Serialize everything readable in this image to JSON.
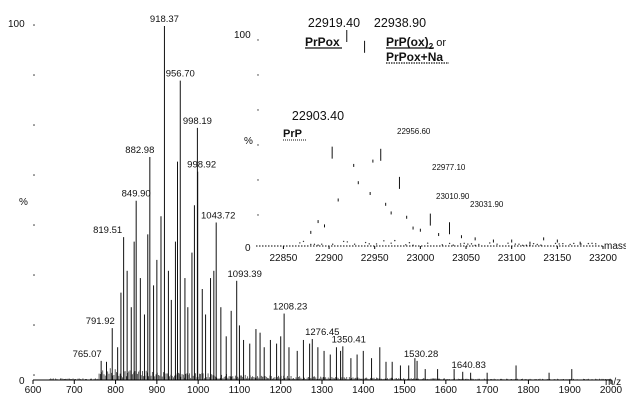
{
  "chart_data": [
    {
      "type": "bar",
      "panel": "main",
      "xlabel": "m/z",
      "x_ticks": [
        600,
        700,
        800,
        900,
        1000,
        1100,
        1200,
        1300,
        1400,
        1500,
        1600,
        1700,
        1800,
        1900,
        2000
      ],
      "xlim": [
        600,
        2000
      ],
      "ylim": [
        0,
        100
      ],
      "y_labels": [
        "100",
        "%",
        "0"
      ],
      "labeled_peaks": [
        {
          "x": 765.07,
          "y": 8,
          "label": "765.07"
        },
        {
          "x": 791.92,
          "y": 17,
          "label": "791.92"
        },
        {
          "x": 819.51,
          "y": 42,
          "label": "819.51"
        },
        {
          "x": 849.9,
          "y": 52,
          "label": "849.90"
        },
        {
          "x": 882.98,
          "y": 64,
          "label": "882.98"
        },
        {
          "x": 918.37,
          "y": 100,
          "label": "918.37"
        },
        {
          "x": 956.7,
          "y": 85,
          "label": "956.70"
        },
        {
          "x": 998.19,
          "y": 72,
          "label": "998.19"
        },
        {
          "x": 998.92,
          "y": 60,
          "label": "998.92"
        },
        {
          "x": 1043.72,
          "y": 46,
          "label": "1043.72"
        },
        {
          "x": 1093.39,
          "y": 30,
          "label": "1093.39"
        },
        {
          "x": 1208.23,
          "y": 21,
          "label": "1208.23"
        },
        {
          "x": 1276.45,
          "y": 14,
          "label": "1276.45"
        },
        {
          "x": 1350.41,
          "y": 12,
          "label": "1350.41"
        },
        {
          "x": 1530.28,
          "y": 8,
          "label": "1530.28"
        },
        {
          "x": 1640.83,
          "y": 5,
          "label": "1640.83"
        }
      ],
      "minor_peaks": [
        {
          "x": 778,
          "y": 5
        },
        {
          "x": 805,
          "y": 9
        },
        {
          "x": 813,
          "y": 24
        },
        {
          "x": 828,
          "y": 30
        },
        {
          "x": 838,
          "y": 20
        },
        {
          "x": 845,
          "y": 38
        },
        {
          "x": 860,
          "y": 28
        },
        {
          "x": 870,
          "y": 18
        },
        {
          "x": 878,
          "y": 40
        },
        {
          "x": 892,
          "y": 26
        },
        {
          "x": 900,
          "y": 33
        },
        {
          "x": 910,
          "y": 45
        },
        {
          "x": 928,
          "y": 30
        },
        {
          "x": 935,
          "y": 22
        },
        {
          "x": 945,
          "y": 38
        },
        {
          "x": 950,
          "y": 60
        },
        {
          "x": 968,
          "y": 28
        },
        {
          "x": 975,
          "y": 20
        },
        {
          "x": 985,
          "y": 35
        },
        {
          "x": 991,
          "y": 48
        },
        {
          "x": 1010,
          "y": 25
        },
        {
          "x": 1018,
          "y": 18
        },
        {
          "x": 1030,
          "y": 28
        },
        {
          "x": 1038,
          "y": 30
        },
        {
          "x": 1055,
          "y": 20
        },
        {
          "x": 1068,
          "y": 12
        },
        {
          "x": 1080,
          "y": 19
        },
        {
          "x": 1100,
          "y": 15
        },
        {
          "x": 1110,
          "y": 11
        },
        {
          "x": 1125,
          "y": 10
        },
        {
          "x": 1140,
          "y": 14
        },
        {
          "x": 1150,
          "y": 13
        },
        {
          "x": 1160,
          "y": 9
        },
        {
          "x": 1175,
          "y": 11
        },
        {
          "x": 1190,
          "y": 10
        },
        {
          "x": 1200,
          "y": 12
        },
        {
          "x": 1220,
          "y": 9
        },
        {
          "x": 1240,
          "y": 8
        },
        {
          "x": 1255,
          "y": 11
        },
        {
          "x": 1270,
          "y": 10
        },
        {
          "x": 1290,
          "y": 9
        },
        {
          "x": 1305,
          "y": 8
        },
        {
          "x": 1320,
          "y": 7
        },
        {
          "x": 1335,
          "y": 9
        },
        {
          "x": 1345,
          "y": 8
        },
        {
          "x": 1370,
          "y": 6
        },
        {
          "x": 1385,
          "y": 7
        },
        {
          "x": 1400,
          "y": 8
        },
        {
          "x": 1420,
          "y": 6
        },
        {
          "x": 1440,
          "y": 9
        },
        {
          "x": 1455,
          "y": 5
        },
        {
          "x": 1470,
          "y": 5
        },
        {
          "x": 1490,
          "y": 4
        },
        {
          "x": 1510,
          "y": 4
        },
        {
          "x": 1525,
          "y": 6
        },
        {
          "x": 1550,
          "y": 3
        },
        {
          "x": 1580,
          "y": 3
        },
        {
          "x": 1620,
          "y": 3
        },
        {
          "x": 1660,
          "y": 2
        },
        {
          "x": 1700,
          "y": 2
        },
        {
          "x": 1770,
          "y": 4
        },
        {
          "x": 1850,
          "y": 2
        },
        {
          "x": 1905,
          "y": 3
        }
      ]
    },
    {
      "type": "bar",
      "panel": "inset",
      "xlabel": "mass",
      "x_ticks": [
        22850,
        22900,
        22950,
        23000,
        23050,
        23100,
        23150,
        23200
      ],
      "xlim": [
        22820,
        23200
      ],
      "ylim": [
        0,
        100
      ],
      "y_labels": [
        "100",
        "%",
        "0"
      ],
      "labeled_peaks": [
        {
          "x": 22903.4,
          "y": 46,
          "label": "22903.40"
        },
        {
          "x": 22919.4,
          "y": 100,
          "label": "22919.40"
        },
        {
          "x": 22938.9,
          "y": 95,
          "label": "22938.90"
        },
        {
          "x": 22956.6,
          "y": 45,
          "label": "22956.60"
        },
        {
          "x": 22977.1,
          "y": 32,
          "label": "22977.10"
        },
        {
          "x": 23010.9,
          "y": 15,
          "label": "23010.90"
        },
        {
          "x": 23031.9,
          "y": 11,
          "label": "23031.90"
        }
      ],
      "minor_peaks": [
        {
          "x": 22880,
          "y": 7
        },
        {
          "x": 22888,
          "y": 12
        },
        {
          "x": 22895,
          "y": 10
        },
        {
          "x": 22910,
          "y": 22
        },
        {
          "x": 22927,
          "y": 38
        },
        {
          "x": 22932,
          "y": 30
        },
        {
          "x": 22945,
          "y": 25
        },
        {
          "x": 22948,
          "y": 40
        },
        {
          "x": 22962,
          "y": 20
        },
        {
          "x": 22968,
          "y": 16
        },
        {
          "x": 22985,
          "y": 14
        },
        {
          "x": 22992,
          "y": 9
        },
        {
          "x": 23000,
          "y": 8
        },
        {
          "x": 23020,
          "y": 6
        },
        {
          "x": 23045,
          "y": 5
        },
        {
          "x": 23060,
          "y": 4
        },
        {
          "x": 23080,
          "y": 3
        },
        {
          "x": 23100,
          "y": 3
        },
        {
          "x": 23120,
          "y": 2
        },
        {
          "x": 23135,
          "y": 4
        },
        {
          "x": 23150,
          "y": 3
        },
        {
          "x": 23175,
          "y": 2
        }
      ],
      "annotations": [
        {
          "label": "PrP",
          "peak": "22903.40"
        },
        {
          "label": "PrPox",
          "peak": "22919.40"
        },
        {
          "label": "PrP(ox)",
          "subscript": "2",
          "suffix": " or",
          "peak": "22938.90"
        },
        {
          "label": "PrPox+Na",
          "peak": "22938.90"
        }
      ]
    }
  ]
}
